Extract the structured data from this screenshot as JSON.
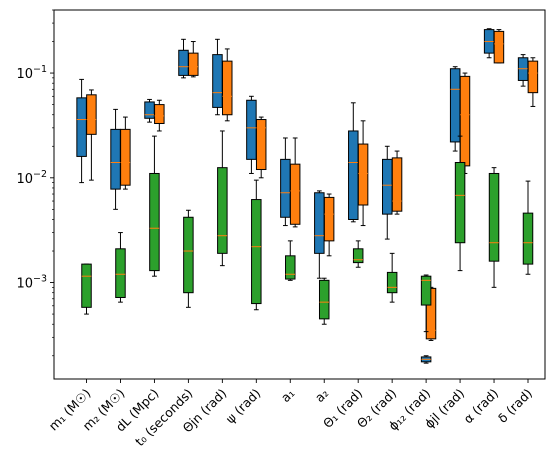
{
  "chart_data": {
    "type": "boxplot",
    "y_scale": "log",
    "ylim": [
      0.00012,
      0.4
    ],
    "y_tick_labels": [
      {
        "value": 0.001,
        "base": "10",
        "exp": "−3"
      },
      {
        "value": 0.01,
        "base": "10",
        "exp": "−2"
      },
      {
        "value": 0.1,
        "base": "10",
        "exp": "−1"
      }
    ],
    "categories": [
      "m₁ (M☉)",
      "m₂ (M☉)",
      "dL (Mpc)",
      "t₀ (seconds)",
      "Θjn (rad)",
      "ψ (rad)",
      "a₁",
      "a₂",
      "Θ₁ (rad)",
      "Θ₂ (rad)",
      "ϕ₁₂ (rad)",
      "ϕjl (rad)",
      "α (rad)",
      "δ (rad)"
    ],
    "colors": {
      "blue": "#1f77b4",
      "orange": "#ff7f0e",
      "green": "#2ca02c",
      "median_line": "#ff7f0e"
    },
    "series": [
      {
        "color_key": "blue",
        "boxes": [
          {
            "q1": 0.016,
            "med": 0.036,
            "q3": 0.058,
            "wlo": 0.009,
            "whi": 0.087
          },
          {
            "q1": 0.0078,
            "med": 0.014,
            "q3": 0.029,
            "wlo": 0.005,
            "whi": 0.045
          },
          {
            "q1": 0.037,
            "med": 0.04,
            "q3": 0.053,
            "wlo": 0.034,
            "whi": 0.056
          },
          {
            "q1": 0.095,
            "med": 0.115,
            "q3": 0.165,
            "wlo": 0.09,
            "whi": 0.21
          },
          {
            "q1": 0.047,
            "med": 0.065,
            "q3": 0.15,
            "wlo": 0.04,
            "whi": 0.21
          },
          {
            "q1": 0.015,
            "med": 0.03,
            "q3": 0.055,
            "wlo": 0.011,
            "whi": 0.06
          },
          {
            "q1": 0.0042,
            "med": 0.0072,
            "q3": 0.015,
            "wlo": 0.0035,
            "whi": 0.024
          },
          {
            "q1": 0.0019,
            "med": 0.0028,
            "q3": 0.0072,
            "wlo": 0.0011,
            "whi": 0.0075
          },
          {
            "q1": 0.004,
            "med": 0.014,
            "q3": 0.028,
            "wlo": 0.0038,
            "whi": 0.052
          },
          {
            "q1": 0.0045,
            "med": 0.0085,
            "q3": 0.015,
            "wlo": 0.0026,
            "whi": 0.02
          },
          null,
          {
            "q1": 0.022,
            "med": 0.07,
            "q3": 0.11,
            "wlo": 0.018,
            "whi": 0.115
          },
          {
            "q1": 0.155,
            "med": 0.2,
            "q3": 0.26,
            "wlo": 0.14,
            "whi": 0.265
          },
          {
            "q1": 0.085,
            "med": 0.11,
            "q3": 0.14,
            "wlo": 0.075,
            "whi": 0.15
          }
        ]
      },
      {
        "color_key": "orange",
        "boxes": [
          {
            "q1": 0.026,
            "med": 0.036,
            "q3": 0.062,
            "wlo": 0.0095,
            "whi": 0.069
          },
          {
            "q1": 0.0085,
            "med": 0.014,
            "q3": 0.029,
            "wlo": 0.0078,
            "whi": 0.038
          },
          {
            "q1": 0.033,
            "med": 0.039,
            "q3": 0.05,
            "wlo": 0.028,
            "whi": 0.055
          },
          {
            "q1": 0.095,
            "med": 0.115,
            "q3": 0.155,
            "wlo": 0.092,
            "whi": 0.2
          },
          {
            "q1": 0.04,
            "med": 0.06,
            "q3": 0.13,
            "wlo": 0.035,
            "whi": 0.17
          },
          {
            "q1": 0.012,
            "med": 0.03,
            "q3": 0.036,
            "wlo": 0.01,
            "whi": 0.038
          },
          {
            "q1": 0.0036,
            "med": 0.0075,
            "q3": 0.0135,
            "wlo": 0.0034,
            "whi": 0.024
          },
          {
            "q1": 0.0025,
            "med": 0.0045,
            "q3": 0.0065,
            "wlo": 0.0018,
            "whi": 0.007
          },
          {
            "q1": 0.0055,
            "med": 0.011,
            "q3": 0.021,
            "wlo": 0.0035,
            "whi": 0.035
          },
          {
            "q1": 0.0048,
            "med": 0.006,
            "q3": 0.0155,
            "wlo": 0.0045,
            "whi": 0.018
          },
          {
            "q1": 0.00029,
            "med": 0.00035,
            "q3": 0.00088,
            "wlo": 0.00028,
            "whi": 0.0009
          },
          {
            "q1": 0.013,
            "med": 0.04,
            "q3": 0.093,
            "wlo": 0.011,
            "whi": 0.1
          },
          {
            "q1": 0.125,
            "med": 0.19,
            "q3": 0.25,
            "wlo": 0.125,
            "whi": 0.26
          },
          {
            "q1": 0.065,
            "med": 0.1,
            "q3": 0.13,
            "wlo": 0.048,
            "whi": 0.14
          }
        ]
      },
      {
        "color_key": "green",
        "boxes": [
          {
            "q1": 0.00058,
            "med": 0.00115,
            "q3": 0.0015,
            "wlo": 0.0005,
            "whi": 0.0015
          },
          {
            "q1": 0.00072,
            "med": 0.0012,
            "q3": 0.0021,
            "wlo": 0.00065,
            "whi": 0.003
          },
          {
            "q1": 0.0013,
            "med": 0.0033,
            "q3": 0.011,
            "wlo": 0.00115,
            "whi": 0.025
          },
          {
            "q1": 0.0008,
            "med": 0.002,
            "q3": 0.0042,
            "wlo": 0.00058,
            "whi": 0.0049
          },
          {
            "q1": 0.0019,
            "med": 0.0028,
            "q3": 0.0125,
            "wlo": 0.00145,
            "whi": 0.028
          },
          {
            "q1": 0.00063,
            "med": 0.0022,
            "q3": 0.0062,
            "wlo": 0.00055,
            "whi": 0.0095
          },
          {
            "q1": 0.00108,
            "med": 0.0012,
            "q3": 0.0018,
            "wlo": 0.00105,
            "whi": 0.0025
          },
          {
            "q1": 0.00045,
            "med": 0.00065,
            "q3": 0.00105,
            "wlo": 0.0004,
            "whi": 0.0011
          },
          {
            "q1": 0.00155,
            "med": 0.00165,
            "q3": 0.0021,
            "wlo": 0.0014,
            "whi": 0.0025
          },
          {
            "q1": 0.0008,
            "med": 0.0009,
            "q3": 0.00125,
            "wlo": 0.00065,
            "whi": 0.0019
          },
          {
            "q1": 0.00061,
            "med": 0.00105,
            "q3": 0.00115,
            "wlo": 0.00034,
            "whi": 0.00118
          },
          {
            "q1": 0.0024,
            "med": 0.0068,
            "q3": 0.014,
            "wlo": 0.0013,
            "whi": 0.025
          },
          {
            "q1": 0.0016,
            "med": 0.0024,
            "q3": 0.011,
            "wlo": 0.0009,
            "whi": 0.0125
          },
          {
            "q1": 0.0015,
            "med": 0.0024,
            "q3": 0.0046,
            "wlo": 0.0012,
            "whi": 0.0093
          }
        ]
      },
      {
        "color_key": "blue",
        "boxes": [
          null,
          null,
          null,
          null,
          null,
          null,
          null,
          null,
          null,
          null,
          {
            "q1": 0.000175,
            "med": 0.000185,
            "q3": 0.000195,
            "wlo": 0.00017,
            "whi": 0.0002
          },
          null,
          null,
          null
        ]
      }
    ],
    "grid": false,
    "legend": "none"
  }
}
